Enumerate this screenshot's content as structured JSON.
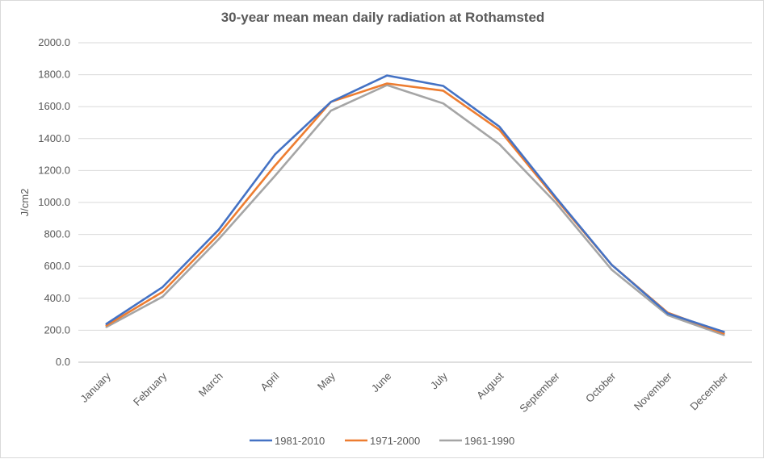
{
  "chart_data": {
    "type": "line",
    "title": "30-year mean mean daily radiation at Rothamsted",
    "xlabel": "",
    "ylabel": "J/cm2",
    "ylim": [
      0,
      2000
    ],
    "ytick_step": 200,
    "ytick_labels": [
      "0.0",
      "200.0",
      "400.0",
      "600.0",
      "800.0",
      "1000.0",
      "1200.0",
      "1400.0",
      "1600.0",
      "1800.0",
      "2000.0"
    ],
    "grid": true,
    "legend_position": "bottom",
    "categories": [
      "January",
      "February",
      "March",
      "April",
      "May",
      "June",
      "July",
      "August",
      "September",
      "October",
      "November",
      "December"
    ],
    "series": [
      {
        "name": "1981-2010",
        "color": "#4472c4",
        "values": [
          240,
          470,
          830,
          1300,
          1630,
          1795,
          1730,
          1475,
          1035,
          610,
          305,
          190
        ]
      },
      {
        "name": "1971-2000",
        "color": "#ed7d31",
        "values": [
          230,
          440,
          800,
          1230,
          1630,
          1745,
          1700,
          1455,
          1025,
          610,
          310,
          180
        ]
      },
      {
        "name": "1961-1990",
        "color": "#a5a5a5",
        "values": [
          220,
          410,
          770,
          1165,
          1575,
          1735,
          1620,
          1365,
          1000,
          580,
          295,
          170
        ]
      }
    ]
  }
}
